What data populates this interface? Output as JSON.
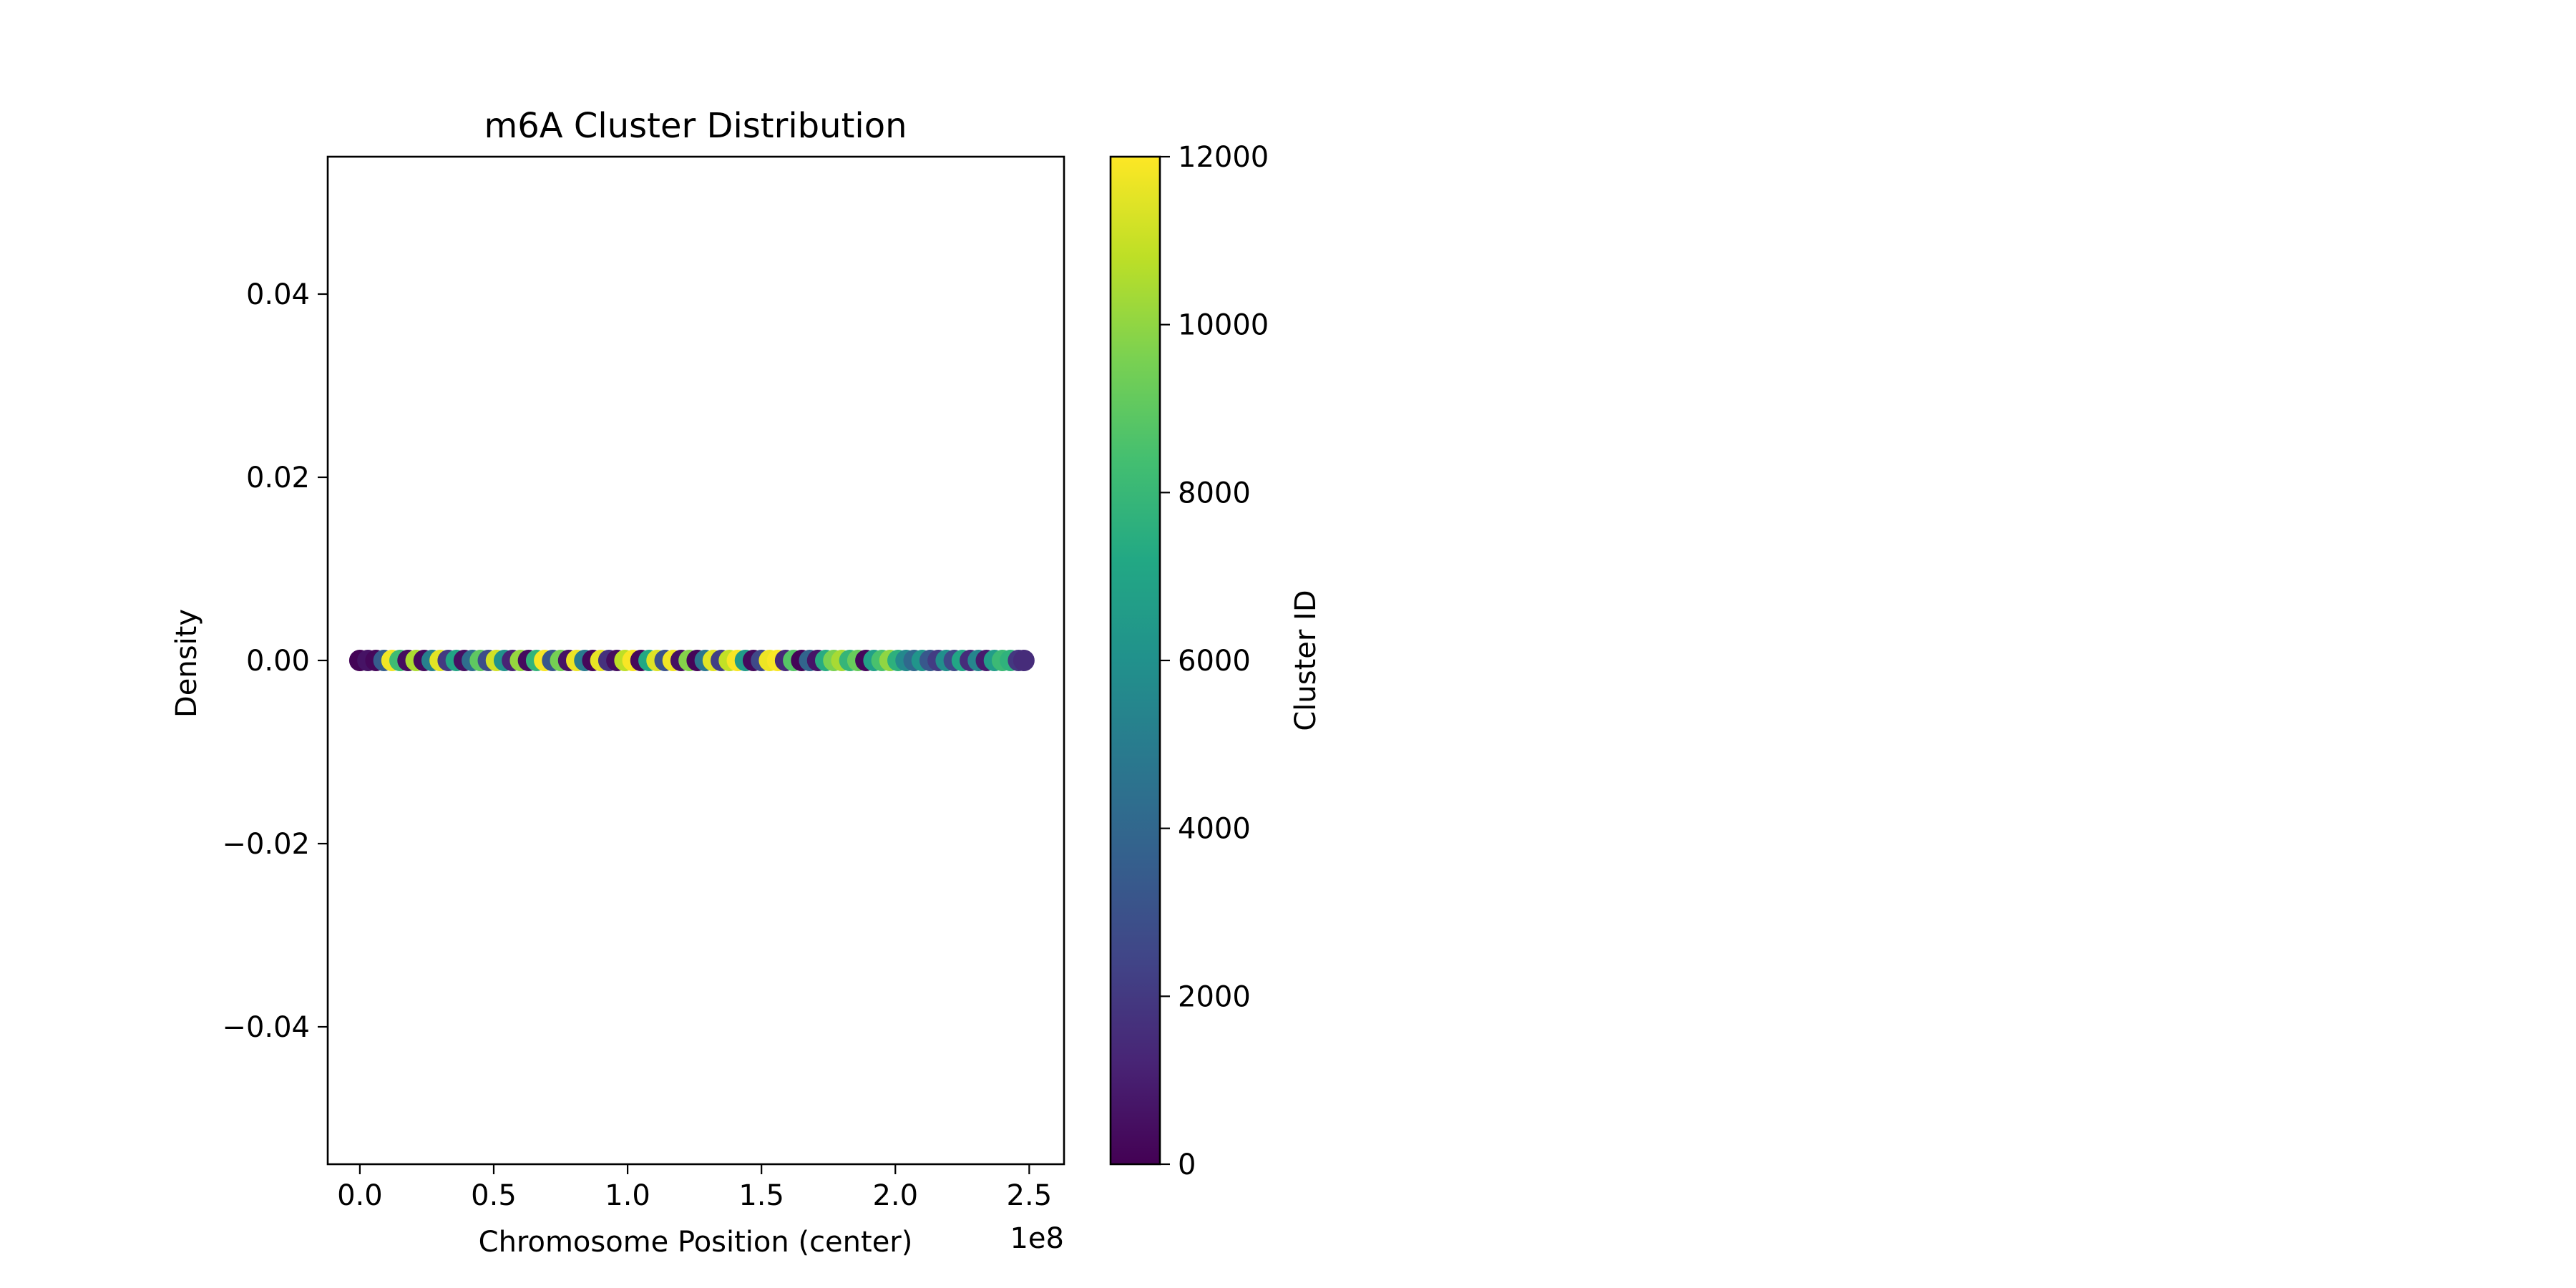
{
  "chart_data": {
    "type": "scatter",
    "title": "m6A Cluster Distribution",
    "xlabel": "Chromosome Position (center)",
    "ylabel": "Density",
    "x_offset_text": "1e8",
    "xlim": [
      -0.12,
      2.63
    ],
    "ylim": [
      -0.055,
      0.055
    ],
    "x_ticks": [
      {
        "value": 0.0,
        "label": "0.0"
      },
      {
        "value": 0.5,
        "label": "0.5"
      },
      {
        "value": 1.0,
        "label": "1.0"
      },
      {
        "value": 1.5,
        "label": "1.5"
      },
      {
        "value": 2.0,
        "label": "2.0"
      },
      {
        "value": 2.5,
        "label": "2.5"
      }
    ],
    "y_ticks": [
      {
        "value": 0.04,
        "label": "0.04"
      },
      {
        "value": 0.02,
        "label": "0.02"
      },
      {
        "value": 0.0,
        "label": "0.00"
      },
      {
        "value": -0.02,
        "label": "−0.02"
      },
      {
        "value": -0.04,
        "label": "−0.04"
      }
    ],
    "grid": false,
    "colorbar": {
      "label": "Cluster ID",
      "colormap": "viridis",
      "range": [
        0,
        12000
      ],
      "ticks": [
        {
          "value": 0,
          "label": "0"
        },
        {
          "value": 2000,
          "label": "2000"
        },
        {
          "value": 4000,
          "label": "4000"
        },
        {
          "value": 6000,
          "label": "6000"
        },
        {
          "value": 8000,
          "label": "8000"
        },
        {
          "value": 10000,
          "label": "10000"
        },
        {
          "value": 12000,
          "label": "12000"
        }
      ]
    },
    "points_y": 0.0,
    "points": [
      {
        "x": 0.0,
        "c": 100
      },
      {
        "x": 0.03,
        "c": 600
      },
      {
        "x": 0.06,
        "c": 200
      },
      {
        "x": 0.09,
        "c": 3500
      },
      {
        "x": 0.12,
        "c": 11800
      },
      {
        "x": 0.15,
        "c": 8200
      },
      {
        "x": 0.18,
        "c": 400
      },
      {
        "x": 0.21,
        "c": 10500
      },
      {
        "x": 0.24,
        "c": 300
      },
      {
        "x": 0.27,
        "c": 5200
      },
      {
        "x": 0.3,
        "c": 11500
      },
      {
        "x": 0.33,
        "c": 2000
      },
      {
        "x": 0.36,
        "c": 7000
      },
      {
        "x": 0.39,
        "c": 500
      },
      {
        "x": 0.42,
        "c": 4300
      },
      {
        "x": 0.45,
        "c": 9000
      },
      {
        "x": 0.48,
        "c": 2800
      },
      {
        "x": 0.51,
        "c": 11200
      },
      {
        "x": 0.54,
        "c": 6100
      },
      {
        "x": 0.57,
        "c": 1200
      },
      {
        "x": 0.6,
        "c": 10100
      },
      {
        "x": 0.63,
        "c": 350
      },
      {
        "x": 0.66,
        "c": 7800
      },
      {
        "x": 0.69,
        "c": 11900
      },
      {
        "x": 0.72,
        "c": 3200
      },
      {
        "x": 0.75,
        "c": 9500
      },
      {
        "x": 0.78,
        "c": 600
      },
      {
        "x": 0.81,
        "c": 11700
      },
      {
        "x": 0.84,
        "c": 5000
      },
      {
        "x": 0.87,
        "c": 200
      },
      {
        "x": 0.9,
        "c": 11600
      },
      {
        "x": 0.93,
        "c": 1700
      },
      {
        "x": 0.96,
        "c": 400
      },
      {
        "x": 0.99,
        "c": 10800
      },
      {
        "x": 1.02,
        "c": 11900
      },
      {
        "x": 1.05,
        "c": 250
      },
      {
        "x": 1.08,
        "c": 7200
      },
      {
        "x": 1.11,
        "c": 11400
      },
      {
        "x": 1.14,
        "c": 3000
      },
      {
        "x": 1.17,
        "c": 11800
      },
      {
        "x": 1.2,
        "c": 500
      },
      {
        "x": 1.23,
        "c": 9800
      },
      {
        "x": 1.26,
        "c": 150
      },
      {
        "x": 1.29,
        "c": 4700
      },
      {
        "x": 1.32,
        "c": 11500
      },
      {
        "x": 1.35,
        "c": 2200
      },
      {
        "x": 1.38,
        "c": 10900
      },
      {
        "x": 1.41,
        "c": 11900
      },
      {
        "x": 1.44,
        "c": 6500
      },
      {
        "x": 1.47,
        "c": 300
      },
      {
        "x": 1.5,
        "c": 2600
      },
      {
        "x": 1.53,
        "c": 11700
      },
      {
        "x": 1.56,
        "c": 11950
      },
      {
        "x": 1.59,
        "c": 1400
      },
      {
        "x": 1.62,
        "c": 8800
      },
      {
        "x": 1.65,
        "c": 100
      },
      {
        "x": 1.68,
        "c": 3900
      },
      {
        "x": 1.71,
        "c": 700
      },
      {
        "x": 1.74,
        "c": 7400
      },
      {
        "x": 1.77,
        "c": 9600
      },
      {
        "x": 1.8,
        "c": 10400
      },
      {
        "x": 1.83,
        "c": 7900
      },
      {
        "x": 1.86,
        "c": 9200
      },
      {
        "x": 1.89,
        "c": 200
      },
      {
        "x": 1.92,
        "c": 6800
      },
      {
        "x": 1.95,
        "c": 8500
      },
      {
        "x": 1.98,
        "c": 10000
      },
      {
        "x": 2.01,
        "c": 7600
      },
      {
        "x": 2.04,
        "c": 5600
      },
      {
        "x": 2.07,
        "c": 4100
      },
      {
        "x": 2.1,
        "c": 6200
      },
      {
        "x": 2.13,
        "c": 3300
      },
      {
        "x": 2.16,
        "c": 2100
      },
      {
        "x": 2.19,
        "c": 5900
      },
      {
        "x": 2.22,
        "c": 2600
      },
      {
        "x": 2.25,
        "c": 7100
      },
      {
        "x": 2.28,
        "c": 1500
      },
      {
        "x": 2.31,
        "c": 5400
      },
      {
        "x": 2.34,
        "c": 900
      },
      {
        "x": 2.37,
        "c": 6600
      },
      {
        "x": 2.4,
        "c": 8100
      },
      {
        "x": 2.43,
        "c": 7700
      },
      {
        "x": 2.46,
        "c": 1900
      },
      {
        "x": 2.48,
        "c": 1500
      }
    ]
  }
}
